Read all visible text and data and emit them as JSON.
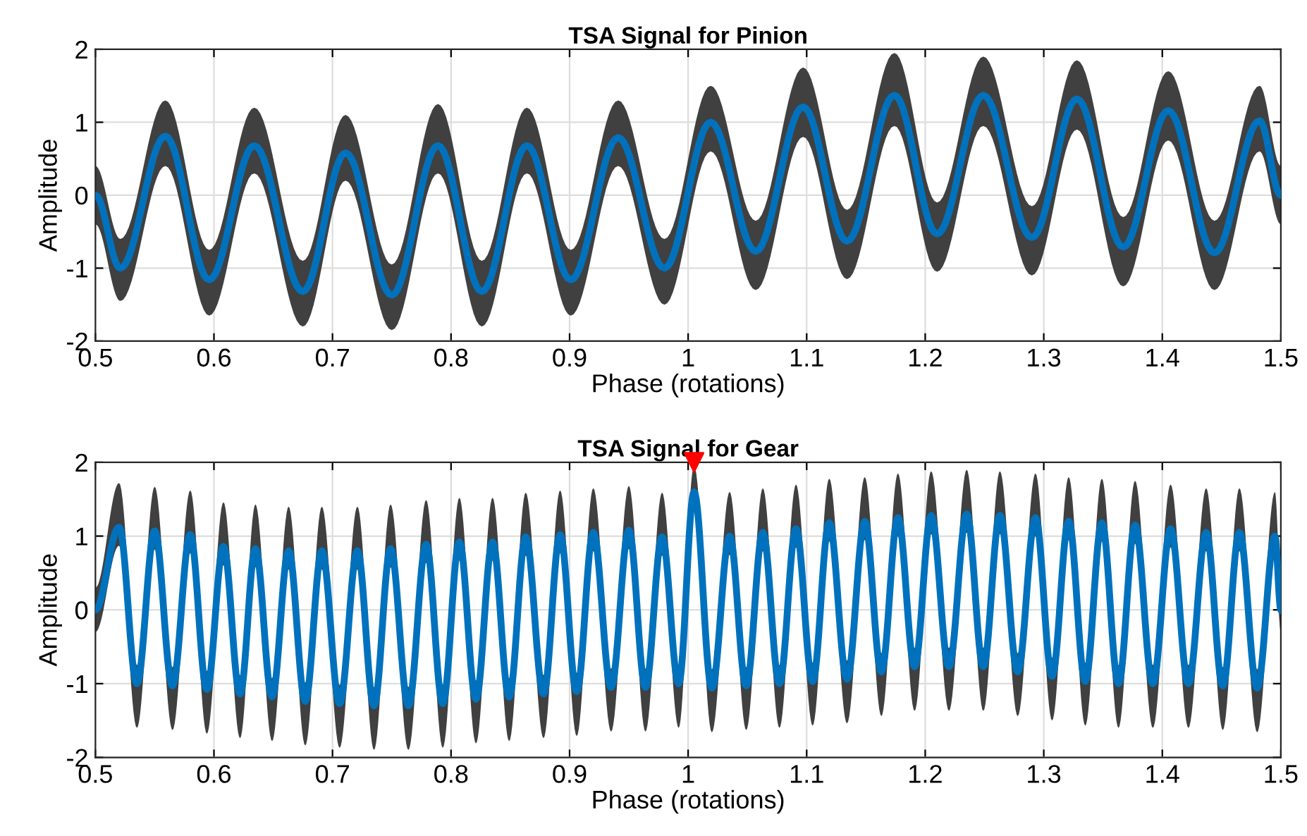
{
  "chart_data": [
    {
      "type": "line",
      "title": "TSA Signal for Pinion",
      "xlabel": "Phase (rotations)",
      "ylabel": "Amplitude",
      "xlim": [
        0.5,
        1.5
      ],
      "ylim": [
        -2,
        2
      ],
      "xticks": [
        0.5,
        0.6,
        0.7,
        0.8,
        0.9,
        1,
        1.1,
        1.2,
        1.3,
        1.4,
        1.5
      ],
      "yticks": [
        -2,
        -1,
        0,
        1,
        2
      ],
      "grid": true,
      "marker": "none",
      "line_style": "solid",
      "series": [
        {
          "color": "#0072bd",
          "x": [
            0.5,
            0.521,
            0.559,
            0.596,
            0.634,
            0.675,
            0.711,
            0.75,
            0.789,
            0.826,
            0.864,
            0.901,
            0.941,
            0.98,
            1.019,
            1.057,
            1.097,
            1.134,
            1.174,
            1.21,
            1.249,
            1.29,
            1.328,
            1.367,
            1.405,
            1.444,
            1.482,
            1.5
          ],
          "values": [
            0.0,
            -1.0,
            0.81,
            -1.16,
            0.68,
            -1.32,
            0.58,
            -1.37,
            0.68,
            -1.32,
            0.68,
            -1.16,
            0.79,
            -1.0,
            1.0,
            -0.77,
            1.21,
            -0.63,
            1.37,
            -0.53,
            1.37,
            -0.58,
            1.32,
            -0.71,
            1.16,
            -0.79,
            1.02,
            0.0
          ],
          "lower": [
            -0.4,
            -1.45,
            0.4,
            -1.65,
            0.3,
            -1.8,
            0.2,
            -1.85,
            0.3,
            -1.8,
            0.3,
            -1.65,
            0.4,
            -1.5,
            0.6,
            -1.3,
            0.8,
            -1.15,
            0.95,
            -1.05,
            0.95,
            -1.1,
            0.9,
            -1.25,
            0.75,
            -1.3,
            0.6,
            -0.4
          ],
          "upper": [
            0.4,
            -0.6,
            1.3,
            -0.75,
            1.2,
            -0.9,
            1.1,
            -0.95,
            1.25,
            -0.9,
            1.2,
            -0.75,
            1.3,
            -0.6,
            1.5,
            -0.35,
            1.75,
            -0.2,
            1.95,
            -0.1,
            1.9,
            -0.15,
            1.85,
            -0.3,
            1.7,
            -0.35,
            1.5,
            0.4
          ]
        }
      ]
    },
    {
      "type": "line",
      "title": "TSA Signal for Gear",
      "xlabel": "Phase (rotations)",
      "ylabel": "Amplitude",
      "xlim": [
        0.5,
        1.5
      ],
      "ylim": [
        -2,
        2
      ],
      "xticks": [
        0.5,
        0.6,
        0.7,
        0.8,
        0.9,
        1,
        1.1,
        1.2,
        1.3,
        1.4,
        1.5
      ],
      "yticks": [
        -2,
        -1,
        0,
        1,
        2
      ],
      "grid": true,
      "marker": "none",
      "line_style": "solid",
      "series": [
        {
          "color": "#0072bd",
          "x": [
            0.5,
            0.52,
            0.535,
            0.55,
            0.565,
            0.58,
            0.594,
            0.608,
            0.622,
            0.635,
            0.649,
            0.663,
            0.677,
            0.691,
            0.706,
            0.721,
            0.735,
            0.749,
            0.764,
            0.779,
            0.793,
            0.807,
            0.821,
            0.835,
            0.849,
            0.863,
            0.878,
            0.892,
            0.906,
            0.92,
            0.935,
            0.95,
            0.964,
            0.978,
            0.992,
            1.005,
            1.02,
            1.035,
            1.049,
            1.063,
            1.077,
            1.091,
            1.105,
            1.119,
            1.134,
            1.149,
            1.163,
            1.177,
            1.191,
            1.205,
            1.22,
            1.235,
            1.249,
            1.263,
            1.278,
            1.293,
            1.307,
            1.321,
            1.335,
            1.349,
            1.363,
            1.377,
            1.392,
            1.407,
            1.422,
            1.437,
            1.451,
            1.465,
            1.48,
            1.495,
            1.5
          ],
          "values": [
            0,
            1.12,
            -1.0,
            1.07,
            -1.03,
            1.02,
            -1.08,
            0.86,
            -1.14,
            0.83,
            -1.18,
            0.8,
            -1.24,
            0.8,
            -1.27,
            0.8,
            -1.3,
            0.83,
            -1.3,
            0.89,
            -1.27,
            0.92,
            -1.21,
            0.92,
            -1.18,
            0.99,
            -1.14,
            1.02,
            -1.11,
            1.05,
            -1.05,
            1.08,
            -1.05,
            0.99,
            -1.0,
            1.6,
            -1.06,
            1.0,
            -1.03,
            1.05,
            -1.0,
            1.1,
            -0.97,
            1.18,
            -0.94,
            1.2,
            -0.84,
            1.25,
            -0.77,
            1.28,
            -0.77,
            1.3,
            -0.77,
            1.28,
            -0.84,
            1.25,
            -0.9,
            1.2,
            -0.97,
            1.18,
            -1.0,
            1.15,
            -1.0,
            1.1,
            -1.0,
            1.05,
            -1.03,
            1.05,
            -1.06,
            1.0,
            0
          ],
          "lower": [
            -0.3,
            0.87,
            -1.6,
            0.82,
            -1.63,
            0.77,
            -1.68,
            0.61,
            -1.74,
            0.58,
            -1.78,
            0.55,
            -1.84,
            0.55,
            -1.87,
            0.55,
            -1.9,
            0.58,
            -1.9,
            0.64,
            -1.87,
            0.67,
            -1.81,
            0.67,
            -1.78,
            0.74,
            -1.74,
            0.77,
            -1.71,
            0.8,
            -1.65,
            0.83,
            -1.65,
            0.74,
            -1.6,
            1.35,
            -1.66,
            0.75,
            -1.63,
            0.8,
            -1.6,
            0.85,
            -1.57,
            0.93,
            -1.54,
            0.95,
            -1.44,
            1.0,
            -1.37,
            1.03,
            -1.37,
            1.05,
            -1.37,
            1.03,
            -1.44,
            1.0,
            -1.5,
            0.95,
            -1.57,
            0.93,
            -1.6,
            0.9,
            -1.6,
            0.85,
            -1.6,
            0.8,
            -1.63,
            0.8,
            -1.66,
            0.75,
            -0.3
          ],
          "upper": [
            0.3,
            1.72,
            -0.75,
            1.67,
            -0.78,
            1.62,
            -0.83,
            1.46,
            -0.89,
            1.43,
            -0.93,
            1.4,
            -0.99,
            1.4,
            -1.02,
            1.4,
            -1.05,
            1.43,
            -1.05,
            1.49,
            -1.02,
            1.52,
            -0.96,
            1.52,
            -0.93,
            1.59,
            -0.89,
            1.62,
            -0.86,
            1.65,
            -0.8,
            1.68,
            -0.8,
            1.59,
            -0.75,
            1.95,
            -0.81,
            1.6,
            -0.78,
            1.65,
            -0.75,
            1.7,
            -0.72,
            1.78,
            -0.69,
            1.8,
            -0.59,
            1.85,
            -0.52,
            1.88,
            -0.52,
            1.9,
            -0.52,
            1.88,
            -0.59,
            1.85,
            -0.65,
            1.8,
            -0.72,
            1.78,
            -0.75,
            1.75,
            -0.75,
            1.7,
            -0.75,
            1.65,
            -0.78,
            1.65,
            -0.81,
            1.6,
            0.3
          ]
        },
        {
          "type": "scatter",
          "color": "#ff0000",
          "marker": "triangle",
          "x": [
            1.005
          ],
          "values": [
            2
          ]
        }
      ]
    }
  ]
}
